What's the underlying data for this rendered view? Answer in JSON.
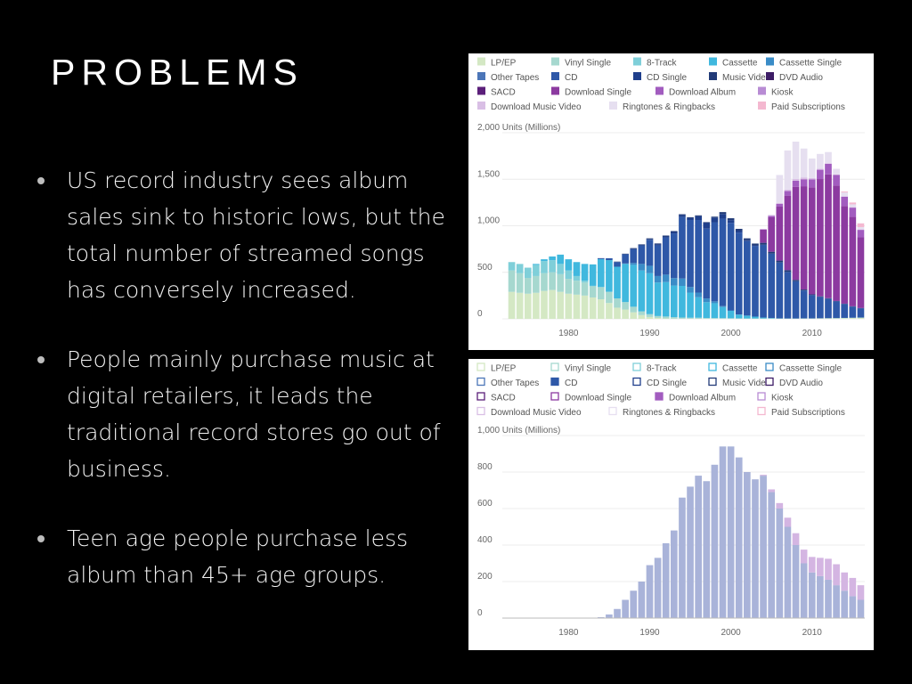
{
  "slide": {
    "title": "PROBLEMS",
    "bullets": [
      "US record industry sees album sales sink to historic lows, but the total number of streamed songs has conversely increased.",
      "People mainly purchase music at digital retailers, it leads the traditional record stores go out of business.",
      "Teen age people purchase less album than 45+ age groups."
    ]
  },
  "chart_data": [
    {
      "type": "bar",
      "stacked": true,
      "legend_position": "top",
      "ylabel": "Units (Millions)",
      "ylim": [
        0,
        2000
      ],
      "yticks": [
        0,
        500,
        1000,
        1500,
        2000
      ],
      "ytick_labels": [
        "0",
        "500",
        "1,000",
        "1,500",
        "2,000 Units (Millions)"
      ],
      "xticks": [
        1980,
        1990,
        2000,
        2010
      ],
      "x": [
        1973,
        1974,
        1975,
        1976,
        1977,
        1978,
        1979,
        1980,
        1981,
        1982,
        1983,
        1984,
        1985,
        1986,
        1987,
        1988,
        1989,
        1990,
        1991,
        1992,
        1993,
        1994,
        1995,
        1996,
        1997,
        1998,
        1999,
        2000,
        2001,
        2002,
        2003,
        2004,
        2005,
        2006,
        2007,
        2008,
        2009,
        2010,
        2011,
        2012,
        2013,
        2014,
        2015,
        2016
      ],
      "legend": [
        {
          "name": "LP/EP",
          "color": "#d4e8c4"
        },
        {
          "name": "Vinyl Single",
          "color": "#a6d8cf"
        },
        {
          "name": "8-Track",
          "color": "#7fcfd9"
        },
        {
          "name": "Cassette",
          "color": "#40b8de"
        },
        {
          "name": "Cassette Single",
          "color": "#3a8cc7"
        },
        {
          "name": "Other Tapes",
          "color": "#4c76b8"
        },
        {
          "name": "CD",
          "color": "#2e58a8"
        },
        {
          "name": "CD Single",
          "color": "#1f3f8c"
        },
        {
          "name": "Music Video",
          "color": "#223b78"
        },
        {
          "name": "DVD Audio",
          "color": "#3d1d66"
        },
        {
          "name": "SACD",
          "color": "#5b1f7a"
        },
        {
          "name": "Download Single",
          "color": "#8c3aa0"
        },
        {
          "name": "Download Album",
          "color": "#a25cbf"
        },
        {
          "name": "Kiosk",
          "color": "#b88cd4"
        },
        {
          "name": "Download Music Video",
          "color": "#d9bfe5"
        },
        {
          "name": "Ringtones & Ringbacks",
          "color": "#e6dff0"
        },
        {
          "name": "Paid Subscriptions",
          "color": "#f4b8d0"
        }
      ],
      "series": [
        {
          "name": "LP/EP",
          "values": [
            290,
            280,
            270,
            280,
            300,
            310,
            290,
            270,
            260,
            250,
            230,
            210,
            170,
            120,
            100,
            70,
            40,
            20,
            10,
            5,
            3,
            2,
            2,
            2,
            2,
            2,
            2,
            2,
            2,
            2,
            2,
            2,
            2,
            2,
            2,
            2,
            3,
            3,
            4,
            5,
            6,
            8,
            10,
            12
          ]
        },
        {
          "name": "Vinyl Single",
          "values": [
            230,
            210,
            170,
            180,
            190,
            190,
            190,
            160,
            150,
            140,
            120,
            130,
            120,
            100,
            80,
            60,
            40,
            30,
            20,
            20,
            15,
            12,
            10,
            10,
            7,
            6,
            5,
            4,
            3,
            2,
            2,
            2,
            2,
            1,
            1,
            1,
            1,
            1,
            1,
            1,
            1,
            1,
            1,
            1
          ]
        },
        {
          "name": "8-Track",
          "values": [
            90,
            100,
            110,
            120,
            130,
            130,
            110,
            90,
            50,
            20,
            5,
            2,
            1,
            0,
            0,
            0,
            0,
            0,
            0,
            0,
            0,
            0,
            0,
            0,
            0,
            0,
            0,
            0,
            0,
            0,
            0,
            0,
            0,
            0,
            0,
            0,
            0,
            0,
            0,
            0,
            0,
            0,
            0,
            0
          ]
        },
        {
          "name": "Cassette",
          "values": [
            0,
            0,
            0,
            10,
            20,
            40,
            100,
            120,
            150,
            180,
            230,
            300,
            340,
            340,
            410,
            450,
            440,
            440,
            360,
            370,
            340,
            340,
            270,
            220,
            170,
            160,
            120,
            80,
            40,
            30,
            20,
            10,
            5,
            2,
            1,
            1,
            1,
            1,
            1,
            1,
            1,
            1,
            1,
            1
          ]
        },
        {
          "name": "Cassette Single",
          "values": [
            0,
            0,
            0,
            0,
            0,
            0,
            0,
            0,
            0,
            0,
            0,
            0,
            0,
            0,
            5,
            20,
            70,
            80,
            70,
            80,
            80,
            80,
            60,
            50,
            40,
            20,
            10,
            5,
            2,
            1,
            0,
            0,
            0,
            0,
            0,
            0,
            0,
            0,
            0,
            0,
            0,
            0,
            0,
            0
          ]
        },
        {
          "name": "CD",
          "values": [
            0,
            0,
            0,
            0,
            0,
            0,
            0,
            0,
            0,
            0,
            0,
            10,
            20,
            50,
            100,
            150,
            200,
            280,
            330,
            400,
            480,
            660,
            720,
            780,
            750,
            850,
            940,
            940,
            880,
            800,
            760,
            780,
            690,
            600,
            500,
            400,
            300,
            250,
            230,
            210,
            180,
            150,
            120,
            100
          ]
        },
        {
          "name": "CD Single",
          "values": [
            0,
            0,
            0,
            0,
            0,
            0,
            0,
            0,
            0,
            0,
            0,
            0,
            0,
            0,
            0,
            0,
            0,
            5,
            10,
            10,
            15,
            20,
            20,
            40,
            60,
            50,
            50,
            30,
            20,
            10,
            5,
            3,
            2,
            1,
            0,
            0,
            0,
            0,
            0,
            0,
            0,
            0,
            0,
            0
          ]
        },
        {
          "name": "Music Video",
          "values": [
            0,
            0,
            0,
            0,
            0,
            0,
            0,
            0,
            0,
            0,
            0,
            0,
            0,
            5,
            5,
            10,
            10,
            10,
            10,
            10,
            10,
            10,
            10,
            10,
            10,
            10,
            20,
            20,
            20,
            20,
            20,
            20,
            20,
            20,
            20,
            15,
            10,
            8,
            6,
            5,
            4,
            3,
            3,
            2
          ]
        },
        {
          "name": "Download Single",
          "values": [
            0,
            0,
            0,
            0,
            0,
            0,
            0,
            0,
            0,
            0,
            0,
            0,
            0,
            0,
            0,
            0,
            0,
            0,
            0,
            0,
            0,
            0,
            0,
            0,
            0,
            0,
            0,
            0,
            0,
            0,
            0,
            140,
            370,
            580,
            800,
            1000,
            1110,
            1150,
            1260,
            1330,
            1240,
            1050,
            960,
            760
          ]
        },
        {
          "name": "Download Album",
          "values": [
            0,
            0,
            0,
            0,
            0,
            0,
            0,
            0,
            0,
            0,
            0,
            0,
            0,
            0,
            0,
            0,
            0,
            0,
            0,
            0,
            0,
            0,
            0,
            0,
            0,
            0,
            0,
            0,
            0,
            0,
            0,
            5,
            15,
            30,
            50,
            65,
            75,
            85,
            100,
            115,
            115,
            100,
            100,
            80
          ]
        },
        {
          "name": "Download Music Video",
          "values": [
            0,
            0,
            0,
            0,
            0,
            0,
            0,
            0,
            0,
            0,
            0,
            0,
            0,
            0,
            0,
            0,
            0,
            0,
            0,
            0,
            0,
            0,
            0,
            0,
            0,
            0,
            0,
            0,
            0,
            0,
            0,
            0,
            5,
            10,
            15,
            20,
            20,
            15,
            10,
            5,
            5,
            5,
            5,
            5
          ]
        },
        {
          "name": "Ringtones & Ringbacks",
          "values": [
            0,
            0,
            0,
            0,
            0,
            0,
            0,
            0,
            0,
            0,
            0,
            0,
            0,
            0,
            0,
            0,
            0,
            0,
            0,
            0,
            0,
            0,
            0,
            0,
            0,
            0,
            0,
            0,
            0,
            0,
            0,
            0,
            10,
            300,
            420,
            400,
            310,
            210,
            160,
            120,
            60,
            40,
            30,
            25
          ]
        },
        {
          "name": "Paid Subscriptions",
          "values": [
            0,
            0,
            0,
            0,
            0,
            0,
            0,
            0,
            0,
            0,
            0,
            0,
            0,
            0,
            0,
            0,
            0,
            0,
            0,
            0,
            0,
            0,
            0,
            0,
            0,
            0,
            0,
            0,
            0,
            0,
            0,
            0,
            0,
            0,
            0,
            0,
            0,
            0,
            0,
            0,
            0,
            10,
            20,
            40
          ]
        }
      ]
    },
    {
      "type": "bar",
      "stacked": true,
      "legend_position": "top",
      "legend_style": "outline",
      "ylabel": "Units (Millions)",
      "ylim": [
        0,
        1000
      ],
      "yticks": [
        0,
        200,
        400,
        600,
        800,
        1000
      ],
      "ytick_labels": [
        "0",
        "200",
        "400",
        "600",
        "800",
        "1,000 Units (Millions)"
      ],
      "xticks": [
        1980,
        1990,
        2000,
        2010
      ],
      "x": [
        1973,
        1974,
        1975,
        1976,
        1977,
        1978,
        1979,
        1980,
        1981,
        1982,
        1983,
        1984,
        1985,
        1986,
        1987,
        1988,
        1989,
        1990,
        1991,
        1992,
        1993,
        1994,
        1995,
        1996,
        1997,
        1998,
        1999,
        2000,
        2001,
        2002,
        2003,
        2004,
        2005,
        2006,
        2007,
        2008,
        2009,
        2010,
        2011,
        2012,
        2013,
        2014,
        2015,
        2016
      ],
      "legend": [
        {
          "name": "LP/EP",
          "color": "#d4e8c4"
        },
        {
          "name": "Vinyl Single",
          "color": "#a6d8cf"
        },
        {
          "name": "8-Track",
          "color": "#7fcfd9"
        },
        {
          "name": "Cassette",
          "color": "#40b8de"
        },
        {
          "name": "Cassette Single",
          "color": "#3a8cc7"
        },
        {
          "name": "Other Tapes",
          "color": "#4c76b8"
        },
        {
          "name": "CD",
          "color": "#2e58a8",
          "active": true
        },
        {
          "name": "CD Single",
          "color": "#1f3f8c"
        },
        {
          "name": "Music Video",
          "color": "#223b78"
        },
        {
          "name": "DVD Audio",
          "color": "#3d1d66"
        },
        {
          "name": "SACD",
          "color": "#5b1f7a"
        },
        {
          "name": "Download Single",
          "color": "#8c3aa0"
        },
        {
          "name": "Download Album",
          "color": "#a25cbf",
          "active": true
        },
        {
          "name": "Kiosk",
          "color": "#b88cd4"
        },
        {
          "name": "Download Music Video",
          "color": "#d9bfe5"
        },
        {
          "name": "Ringtones & Ringbacks",
          "color": "#e6dff0"
        },
        {
          "name": "Paid Subscriptions",
          "color": "#f4b8d0"
        }
      ],
      "series": [
        {
          "name": "CD",
          "color": "#a9b3d9",
          "values": [
            0,
            0,
            0,
            0,
            0,
            0,
            0,
            0,
            0,
            0,
            0,
            5,
            20,
            50,
            100,
            150,
            200,
            290,
            330,
            410,
            480,
            660,
            720,
            780,
            750,
            840,
            940,
            940,
            880,
            800,
            760,
            780,
            690,
            600,
            500,
            400,
            300,
            250,
            230,
            210,
            180,
            150,
            120,
            100
          ]
        },
        {
          "name": "Download Album",
          "color": "#d4b5e2",
          "values": [
            0,
            0,
            0,
            0,
            0,
            0,
            0,
            0,
            0,
            0,
            0,
            0,
            0,
            0,
            0,
            0,
            0,
            0,
            0,
            0,
            0,
            0,
            0,
            0,
            0,
            0,
            0,
            0,
            0,
            0,
            0,
            5,
            15,
            30,
            50,
            65,
            75,
            85,
            100,
            115,
            115,
            100,
            100,
            80
          ]
        }
      ]
    }
  ]
}
